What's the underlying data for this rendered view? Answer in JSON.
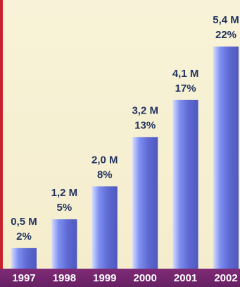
{
  "chart_data": {
    "type": "bar",
    "categories": [
      "1997",
      "1998",
      "1999",
      "2000",
      "2001",
      "2002"
    ],
    "series": [
      {
        "values": [
          0.5,
          1.2,
          2.0,
          3.2,
          4.1,
          5.4
        ]
      }
    ],
    "value_labels": [
      "0,5 M",
      "1,2 M",
      "2,0 M",
      "3,2 M",
      "4,1 M",
      "5,4 M"
    ],
    "percent_labels": [
      "2%",
      "5%",
      "8%",
      "13%",
      "17%",
      "22%"
    ],
    "ylim": [
      0,
      5.4
    ],
    "grid": false,
    "legend": "none",
    "colors": {
      "background": "#f7f2d2",
      "left_rule": "#c7232d",
      "axis_band": "#72246a",
      "bar_light": "#d5dcff",
      "bar_mid": "#7d8ef0",
      "bar_dark": "#4f58be",
      "label_text": "#23345f",
      "year_text": "#ffffff"
    }
  }
}
